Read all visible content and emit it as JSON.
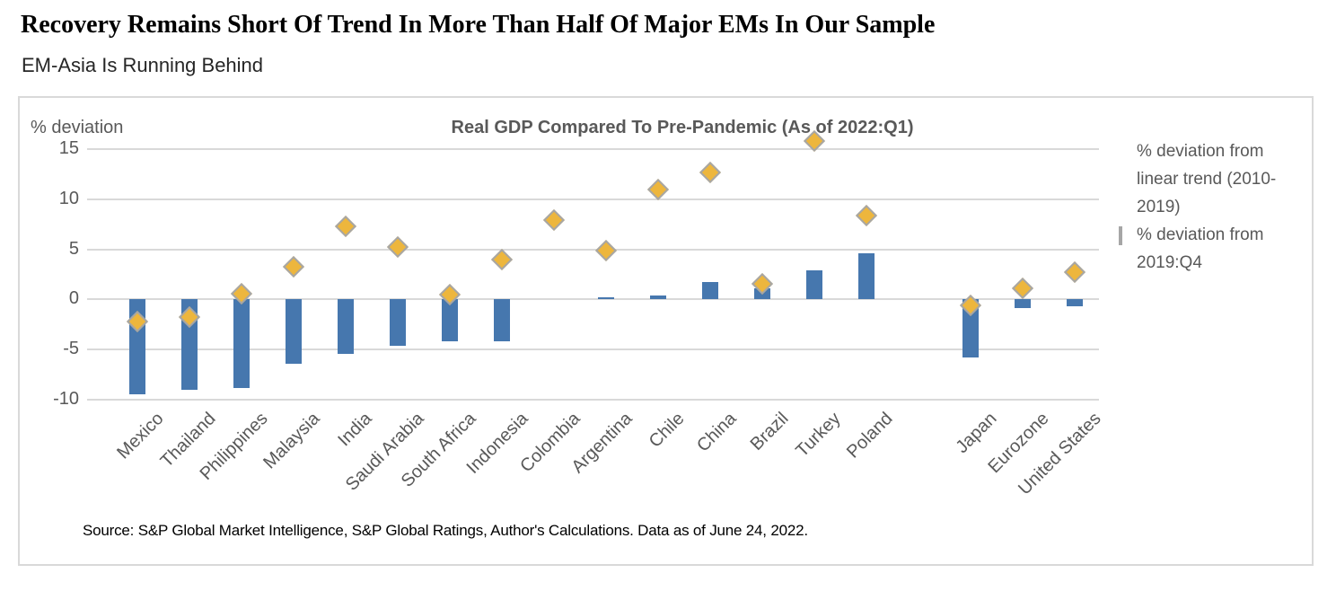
{
  "page": {
    "title": "Recovery Remains Short Of Trend In More Than Half Of Major EMs In Our Sample",
    "subtitle": "EM-Asia Is Running Behind"
  },
  "chart": {
    "axis_label": "% deviation",
    "source": "Source: S&P Global Market Intelligence, S&P Global Ratings, Author's Calculations. Data as of June 24, 2022."
  },
  "colors": {
    "bar_blue": "#4677ae",
    "diamond_gold": "#edb63d",
    "diamond_border": "#a6a6a6",
    "gridline": "#d9d9d9",
    "axis_text": "#595959"
  },
  "chart_data": {
    "type": "bar",
    "title": "Real GDP Compared To Pre-Pandemic (As of 2022:Q1)",
    "xlabel": "",
    "ylabel": "% deviation",
    "ylim": [
      -10,
      15
    ],
    "yticks": [
      15,
      10,
      5,
      0,
      -5,
      -10
    ],
    "grid": true,
    "legend_position": "right",
    "categories": [
      "Mexico",
      "Thailand",
      "Philippines",
      "Malaysia",
      "India",
      "Saudi Arabia",
      "South Africa",
      "Indonesia",
      "Colombia",
      "Argentina",
      "Chile",
      "China",
      "Brazil",
      "Turkey",
      "Poland",
      "",
      "Japan",
      "Eurozone",
      "United States"
    ],
    "series": [
      {
        "name": "% deviation from linear trend (2010-2019)",
        "type": "bar",
        "color": "#4677ae",
        "values": [
          -9.5,
          -9.0,
          -8.8,
          -6.4,
          -5.4,
          -4.6,
          -4.2,
          -4.2,
          0.0,
          0.2,
          0.4,
          1.7,
          1.1,
          2.9,
          4.6,
          null,
          -5.8,
          -0.9,
          -0.7
        ]
      },
      {
        "name": "% deviation from 2019:Q4",
        "type": "scatter",
        "marker": "diamond",
        "color": "#edb63d",
        "values": [
          -2.2,
          -1.8,
          0.6,
          3.3,
          7.3,
          5.2,
          0.5,
          4.0,
          7.9,
          4.9,
          11.0,
          12.7,
          1.6,
          15.8,
          8.4,
          null,
          -0.6,
          1.1,
          2.7
        ]
      }
    ]
  }
}
